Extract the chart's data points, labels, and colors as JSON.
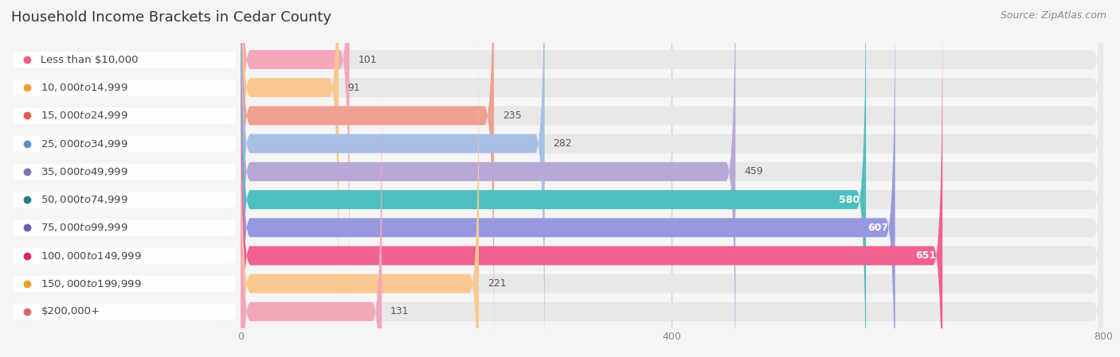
{
  "title": "Household Income Brackets in Cedar County",
  "source": "Source: ZipAtlas.com",
  "categories": [
    "Less than $10,000",
    "$10,000 to $14,999",
    "$15,000 to $24,999",
    "$25,000 to $34,999",
    "$35,000 to $49,999",
    "$50,000 to $74,999",
    "$75,000 to $99,999",
    "$100,000 to $149,999",
    "$150,000 to $199,999",
    "$200,000+"
  ],
  "values": [
    101,
    91,
    235,
    282,
    459,
    580,
    607,
    651,
    221,
    131
  ],
  "bar_colors": [
    "#f4a7b9",
    "#f9c890",
    "#f0a090",
    "#a8bfe8",
    "#b8a8d8",
    "#4dbfbf",
    "#9898e0",
    "#f06090",
    "#f9c890",
    "#f4a7b9"
  ],
  "label_dot_colors": [
    "#e8607a",
    "#f0a030",
    "#e06050",
    "#6090c8",
    "#8870b8",
    "#208080",
    "#6060b8",
    "#e02070",
    "#f0a030",
    "#e06070"
  ],
  "background_color": "#f5f5f5",
  "bar_background_color": "#e8e8e8",
  "xlim": [
    0,
    800
  ],
  "xticks": [
    0,
    400,
    800
  ],
  "title_fontsize": 13,
  "label_fontsize": 9.5,
  "value_fontsize": 9,
  "source_fontsize": 9
}
